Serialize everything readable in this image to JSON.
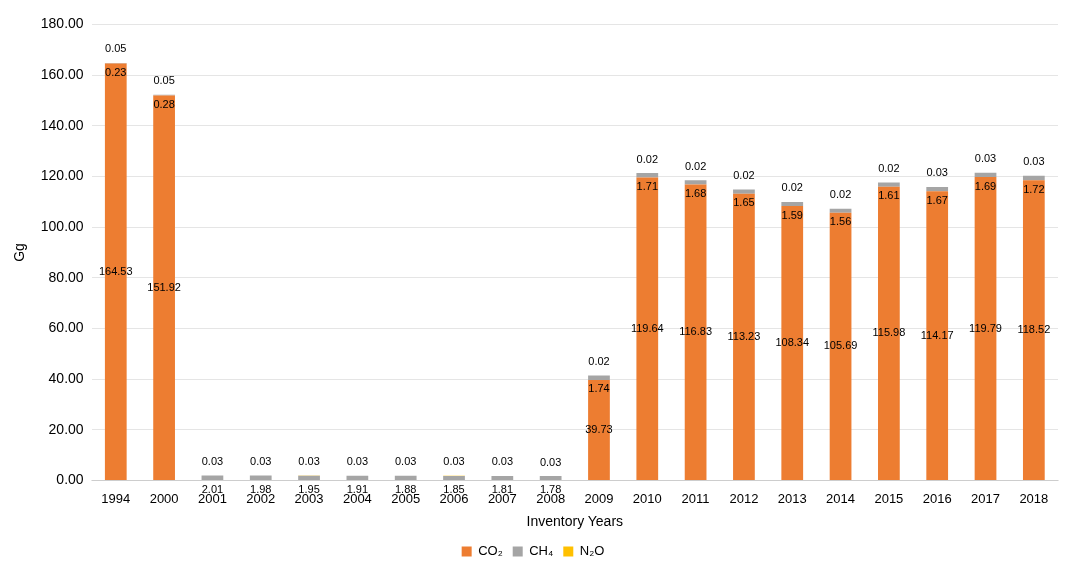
{
  "chart_data": {
    "type": "bar",
    "stacked": true,
    "xlabel": "Inventory Years",
    "ylabel": "Gg",
    "categories": [
      "1994",
      "2000",
      "2001",
      "2002",
      "2003",
      "2004",
      "2005",
      "2006",
      "2007",
      "2008",
      "2009",
      "2010",
      "2011",
      "2012",
      "2013",
      "2014",
      "2015",
      "2016",
      "2017",
      "2018"
    ],
    "series": [
      {
        "name": "CO₂",
        "color": "#ed7d31",
        "values": [
          164.53,
          151.92,
          null,
          null,
          null,
          null,
          null,
          null,
          null,
          null,
          39.73,
          119.64,
          116.83,
          113.23,
          108.34,
          105.69,
          115.98,
          114.17,
          119.79,
          118.52
        ]
      },
      {
        "name": "CH₄",
        "color": "#a5a5a5",
        "values": [
          0.23,
          0.28,
          2.01,
          1.98,
          1.95,
          1.91,
          1.88,
          1.85,
          1.81,
          1.78,
          1.74,
          1.71,
          1.68,
          1.65,
          1.59,
          1.56,
          1.61,
          1.67,
          1.69,
          1.72
        ]
      },
      {
        "name": "N₂O",
        "color": "#ffc000",
        "values": [
          0.05,
          0.05,
          0.03,
          0.03,
          0.03,
          0.03,
          0.03,
          0.03,
          0.03,
          0.03,
          0.02,
          0.02,
          0.02,
          0.02,
          0.02,
          0.02,
          0.02,
          0.03,
          0.03,
          0.03
        ]
      }
    ],
    "ylim": [
      0,
      180
    ],
    "yticks": [
      {
        "value": 0,
        "label": "0.00"
      },
      {
        "value": 20,
        "label": "20.00"
      },
      {
        "value": 40,
        "label": "40.00"
      },
      {
        "value": 60,
        "label": "60.00"
      },
      {
        "value": 80,
        "label": "80.00"
      },
      {
        "value": 100,
        "label": "100.00"
      },
      {
        "value": 120,
        "label": "120.00"
      },
      {
        "value": 140,
        "label": "140.00"
      },
      {
        "value": 160,
        "label": "160.00"
      },
      {
        "value": 180,
        "label": "180.00"
      }
    ],
    "grid": "y",
    "legend": "bottom",
    "data_labels": true
  }
}
